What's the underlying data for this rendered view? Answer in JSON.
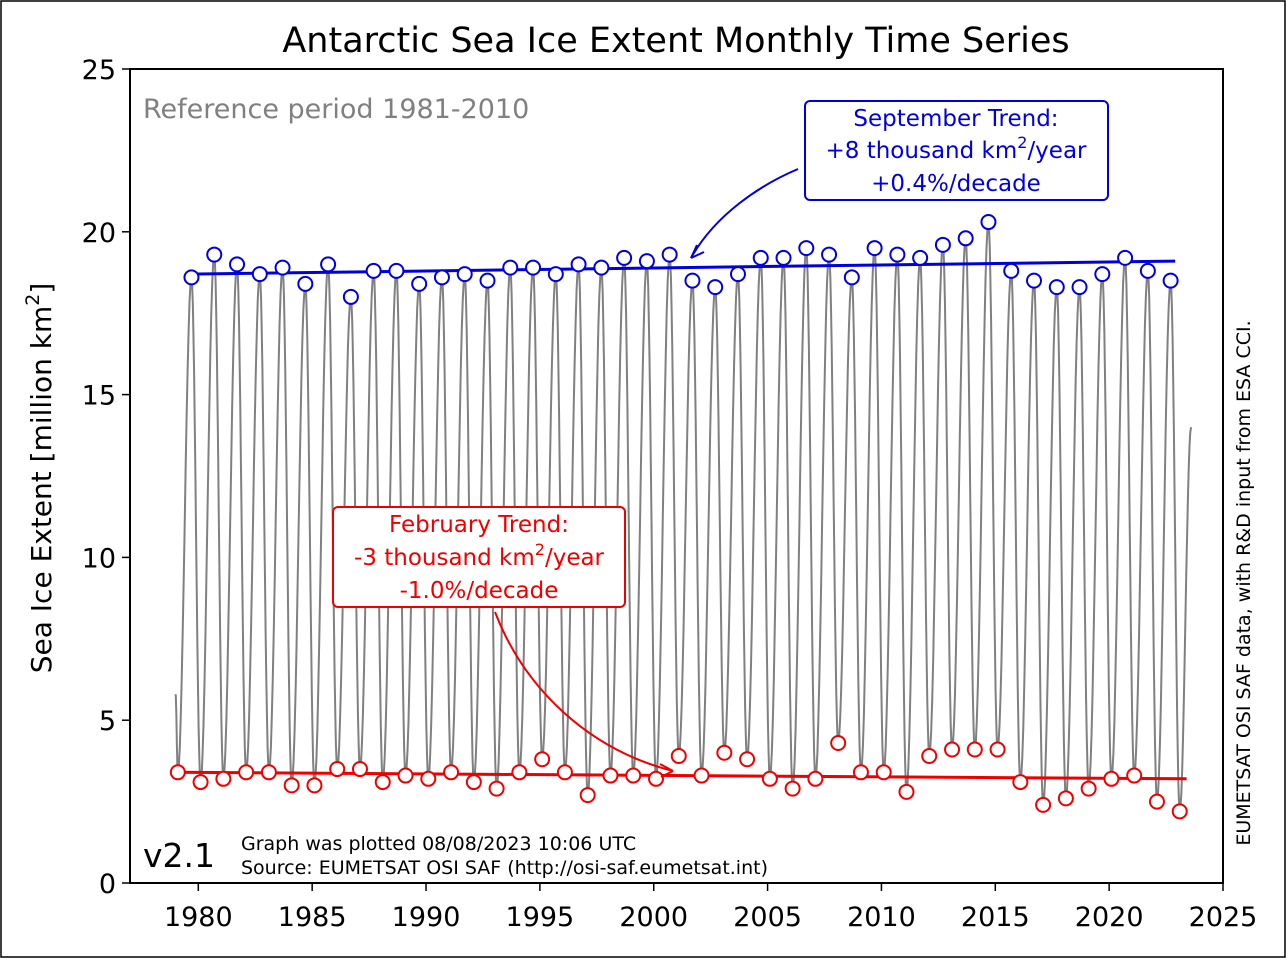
{
  "chart_data": {
    "type": "line",
    "title": "Antarctic Sea Ice Extent Monthly Time Series",
    "xlabel": "",
    "ylabel": "Sea Ice Extent [million km",
    "ylabel_sup": "2",
    "ylabel_end": "]",
    "xlim": [
      1977,
      2025
    ],
    "ylim": [
      0,
      25
    ],
    "x_ticks": [
      "1980",
      "1985",
      "1990",
      "1995",
      "2000",
      "2005",
      "2010",
      "2015",
      "2020",
      "2025"
    ],
    "y_ticks": [
      "0",
      "5",
      "10",
      "15",
      "20",
      "25"
    ],
    "grid": false,
    "colors": {
      "monthly": "#808080",
      "september": "#0000dd",
      "february": "#ee0000",
      "reference_text": "#808080"
    },
    "series": [
      {
        "name": "",
        "kind": "September maximum",
        "x": [
          1979.7,
          1980.7,
          1981.7,
          1982.7,
          1983.7,
          1984.7,
          1985.7,
          1986.7,
          1987.7,
          1988.7,
          1989.7,
          1990.7,
          1991.7,
          1992.7,
          1993.7,
          1994.7,
          1995.7,
          1996.7,
          1997.7,
          1998.7,
          1999.7,
          2000.7,
          2001.7,
          2002.7,
          2003.7,
          2004.7,
          2005.7,
          2006.7,
          2007.7,
          2008.7,
          2009.7,
          2010.7,
          2011.7,
          2012.7,
          2013.7,
          2014.7,
          2015.7,
          2016.7,
          2017.7,
          2018.7,
          2019.7,
          2020.7,
          2021.7,
          2022.7
        ],
        "values": [
          18.6,
          19.3,
          19.0,
          18.7,
          18.9,
          18.4,
          19.0,
          18.0,
          18.8,
          18.8,
          18.4,
          18.6,
          18.7,
          18.5,
          18.9,
          18.9,
          18.7,
          19.0,
          18.9,
          19.2,
          19.1,
          19.3,
          18.5,
          18.3,
          18.7,
          19.2,
          19.2,
          19.5,
          19.3,
          18.6,
          19.5,
          19.3,
          19.2,
          19.6,
          19.8,
          20.3,
          18.8,
          18.5,
          18.3,
          18.3,
          18.7,
          19.2,
          18.8,
          18.5
        ]
      },
      {
        "name": "",
        "kind": "February minimum",
        "x": [
          1979.1,
          1980.1,
          1981.1,
          1982.1,
          1983.1,
          1984.1,
          1985.1,
          1986.1,
          1987.1,
          1988.1,
          1989.1,
          1990.1,
          1991.1,
          1992.1,
          1993.1,
          1994.1,
          1995.1,
          1996.1,
          1997.1,
          1998.1,
          1999.1,
          2000.1,
          2001.1,
          2002.1,
          2003.1,
          2004.1,
          2005.1,
          2006.1,
          2007.1,
          2008.1,
          2009.1,
          2010.1,
          2011.1,
          2012.1,
          2013.1,
          2014.1,
          2015.1,
          2016.1,
          2017.1,
          2018.1,
          2019.1,
          2020.1,
          2021.1,
          2022.1,
          2023.1
        ],
        "values": [
          3.4,
          3.1,
          3.2,
          3.4,
          3.4,
          3.0,
          3.0,
          3.5,
          3.5,
          3.1,
          3.3,
          3.2,
          3.4,
          3.1,
          2.9,
          3.4,
          3.8,
          3.4,
          2.7,
          3.3,
          3.3,
          3.2,
          3.9,
          3.3,
          4.0,
          3.8,
          3.2,
          2.9,
          3.2,
          4.3,
          3.4,
          3.4,
          2.8,
          3.9,
          4.1,
          4.1,
          4.1,
          3.1,
          2.4,
          2.6,
          2.9,
          3.2,
          3.3,
          2.5,
          2.2
        ]
      }
    ],
    "trends": {
      "september": {
        "x": [
          1979.6,
          2022.9
        ],
        "y": [
          18.7,
          19.1
        ]
      },
      "february": {
        "x": [
          1979.0,
          2023.4
        ],
        "y": [
          3.4,
          3.2
        ]
      }
    },
    "monthly_note": "grey curve: monthly extent from Jan 1979 to Aug 2023; data gaps near 1986 and 1987-88",
    "annotations": {
      "reference": "Reference period 1981-2010",
      "september_box": {
        "line1": "September Trend:",
        "line2a": "+8 thousand km",
        "line2sup": "2",
        "line2b": "/year",
        "line3": "+0.4%/decade",
        "arrow_target": [
          2001.5,
          19.0
        ]
      },
      "february_box": {
        "line1": "February Trend:",
        "line2a": "-3 thousand km",
        "line2sup": "2",
        "line2b": "/year",
        "line3": "-1.0%/decade",
        "arrow_target": [
          2000.9,
          3.4
        ]
      },
      "version": "v2.1",
      "plotted": "Graph was plotted 08/08/2023 10:06 UTC",
      "source": "Source: EUMETSAT OSI SAF (http://osi-saf.eumetsat.int)",
      "side_text": "EUMETSAT OSI SAF data, with R&D input from ESA CCI."
    }
  }
}
